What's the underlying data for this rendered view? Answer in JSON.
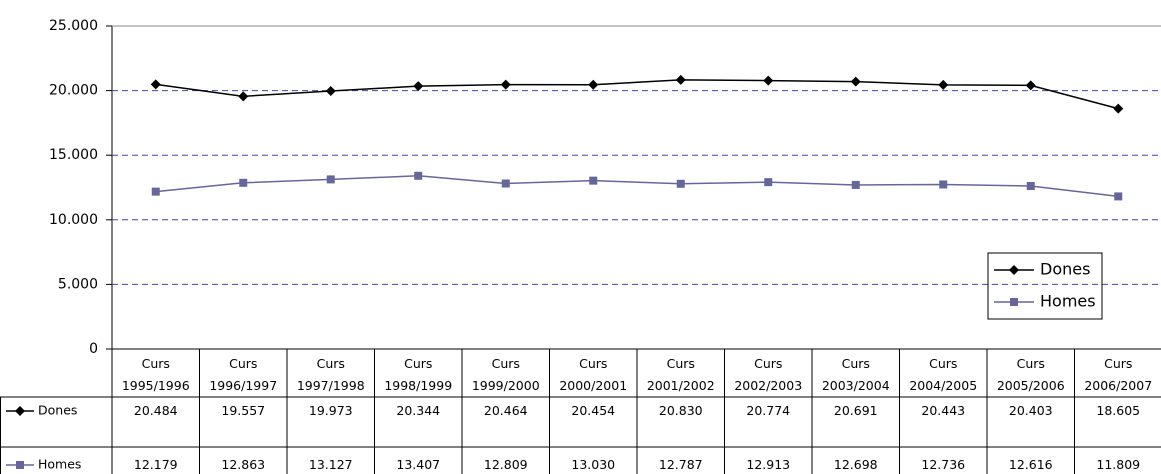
{
  "chart_data": {
    "type": "line",
    "categories": [
      "Curs 1995/1996",
      "Curs 1996/1997",
      "Curs 1997/1998",
      "Curs 1998/1999",
      "Curs 1999/2000",
      "Curs 2000/2001",
      "Curs 2001/2002",
      "Curs 2002/2003",
      "Curs 2003/2004",
      "Curs 2004/2005",
      "Curs 2005/2006",
      "Curs 2006/2007"
    ],
    "series": [
      {
        "name": "Dones",
        "color": "#000000",
        "marker": "diamond",
        "values": [
          20484,
          19557,
          19973,
          20344,
          20464,
          20454,
          20830,
          20774,
          20691,
          20443,
          20403,
          18605
        ],
        "value_labels": [
          "20.484",
          "19.557",
          "19.973",
          "20.344",
          "20.464",
          "20.454",
          "20.830",
          "20.774",
          "20.691",
          "20.443",
          "20.403",
          "18.605"
        ]
      },
      {
        "name": "Homes",
        "color": "#666699",
        "marker": "square",
        "values": [
          12179,
          12863,
          13127,
          13407,
          12809,
          13030,
          12787,
          12913,
          12698,
          12736,
          12616,
          11809
        ],
        "value_labels": [
          "12.179",
          "12.863",
          "13.127",
          "13.407",
          "12.809",
          "13.030",
          "12.787",
          "12.913",
          "12.698",
          "12.736",
          "12.616",
          "11.809"
        ]
      }
    ],
    "ylim": [
      0,
      25000
    ],
    "yticks": [
      0,
      {
        "value": 5000,
        "label": "5.000"
      },
      {
        "value": 10000,
        "label": "10.000"
      },
      {
        "value": 15000,
        "label": "15.000"
      },
      {
        "value": 20000,
        "label": "20.000"
      },
      {
        "value": 25000,
        "label": "25.000"
      }
    ],
    "grid": true,
    "legend": "right"
  }
}
